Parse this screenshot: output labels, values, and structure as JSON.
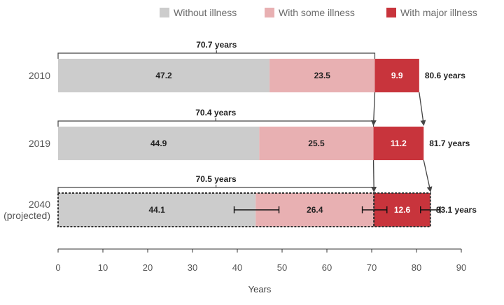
{
  "chart_data": {
    "type": "bar",
    "orientation": "horizontal",
    "stacked": true,
    "categories": [
      "2010",
      "2019",
      "2040\n(projected)"
    ],
    "series": [
      {
        "name": "Without illness",
        "color": "#cccccc",
        "values": [
          47.2,
          44.9,
          44.1
        ]
      },
      {
        "name": "With some illness",
        "color": "#e8b0b2",
        "values": [
          23.5,
          25.5,
          26.4
        ]
      },
      {
        "name": "With major illness",
        "color": "#c8343c",
        "values": [
          9.9,
          11.2,
          12.6
        ]
      }
    ],
    "totals": [
      "80.6 years",
      "81.7 years",
      "83.1 years"
    ],
    "brace_values": [
      "70.7 years",
      "70.4 years",
      "70.5 years"
    ],
    "projected_index": 2,
    "error_bars": [
      {
        "center": 44.1,
        "low": 39.3,
        "high": 49.3
      },
      {
        "center": 70.5,
        "low": 67.9,
        "high": 73.4
      },
      {
        "center": 83.1,
        "low": 80.9,
        "high": 85.3
      }
    ],
    "xlabel": "Years",
    "xlim": [
      0,
      90
    ],
    "xticks": [
      0,
      10,
      20,
      30,
      40,
      50,
      60,
      70,
      80,
      90
    ],
    "legend_position": "top-right",
    "grid": false
  }
}
